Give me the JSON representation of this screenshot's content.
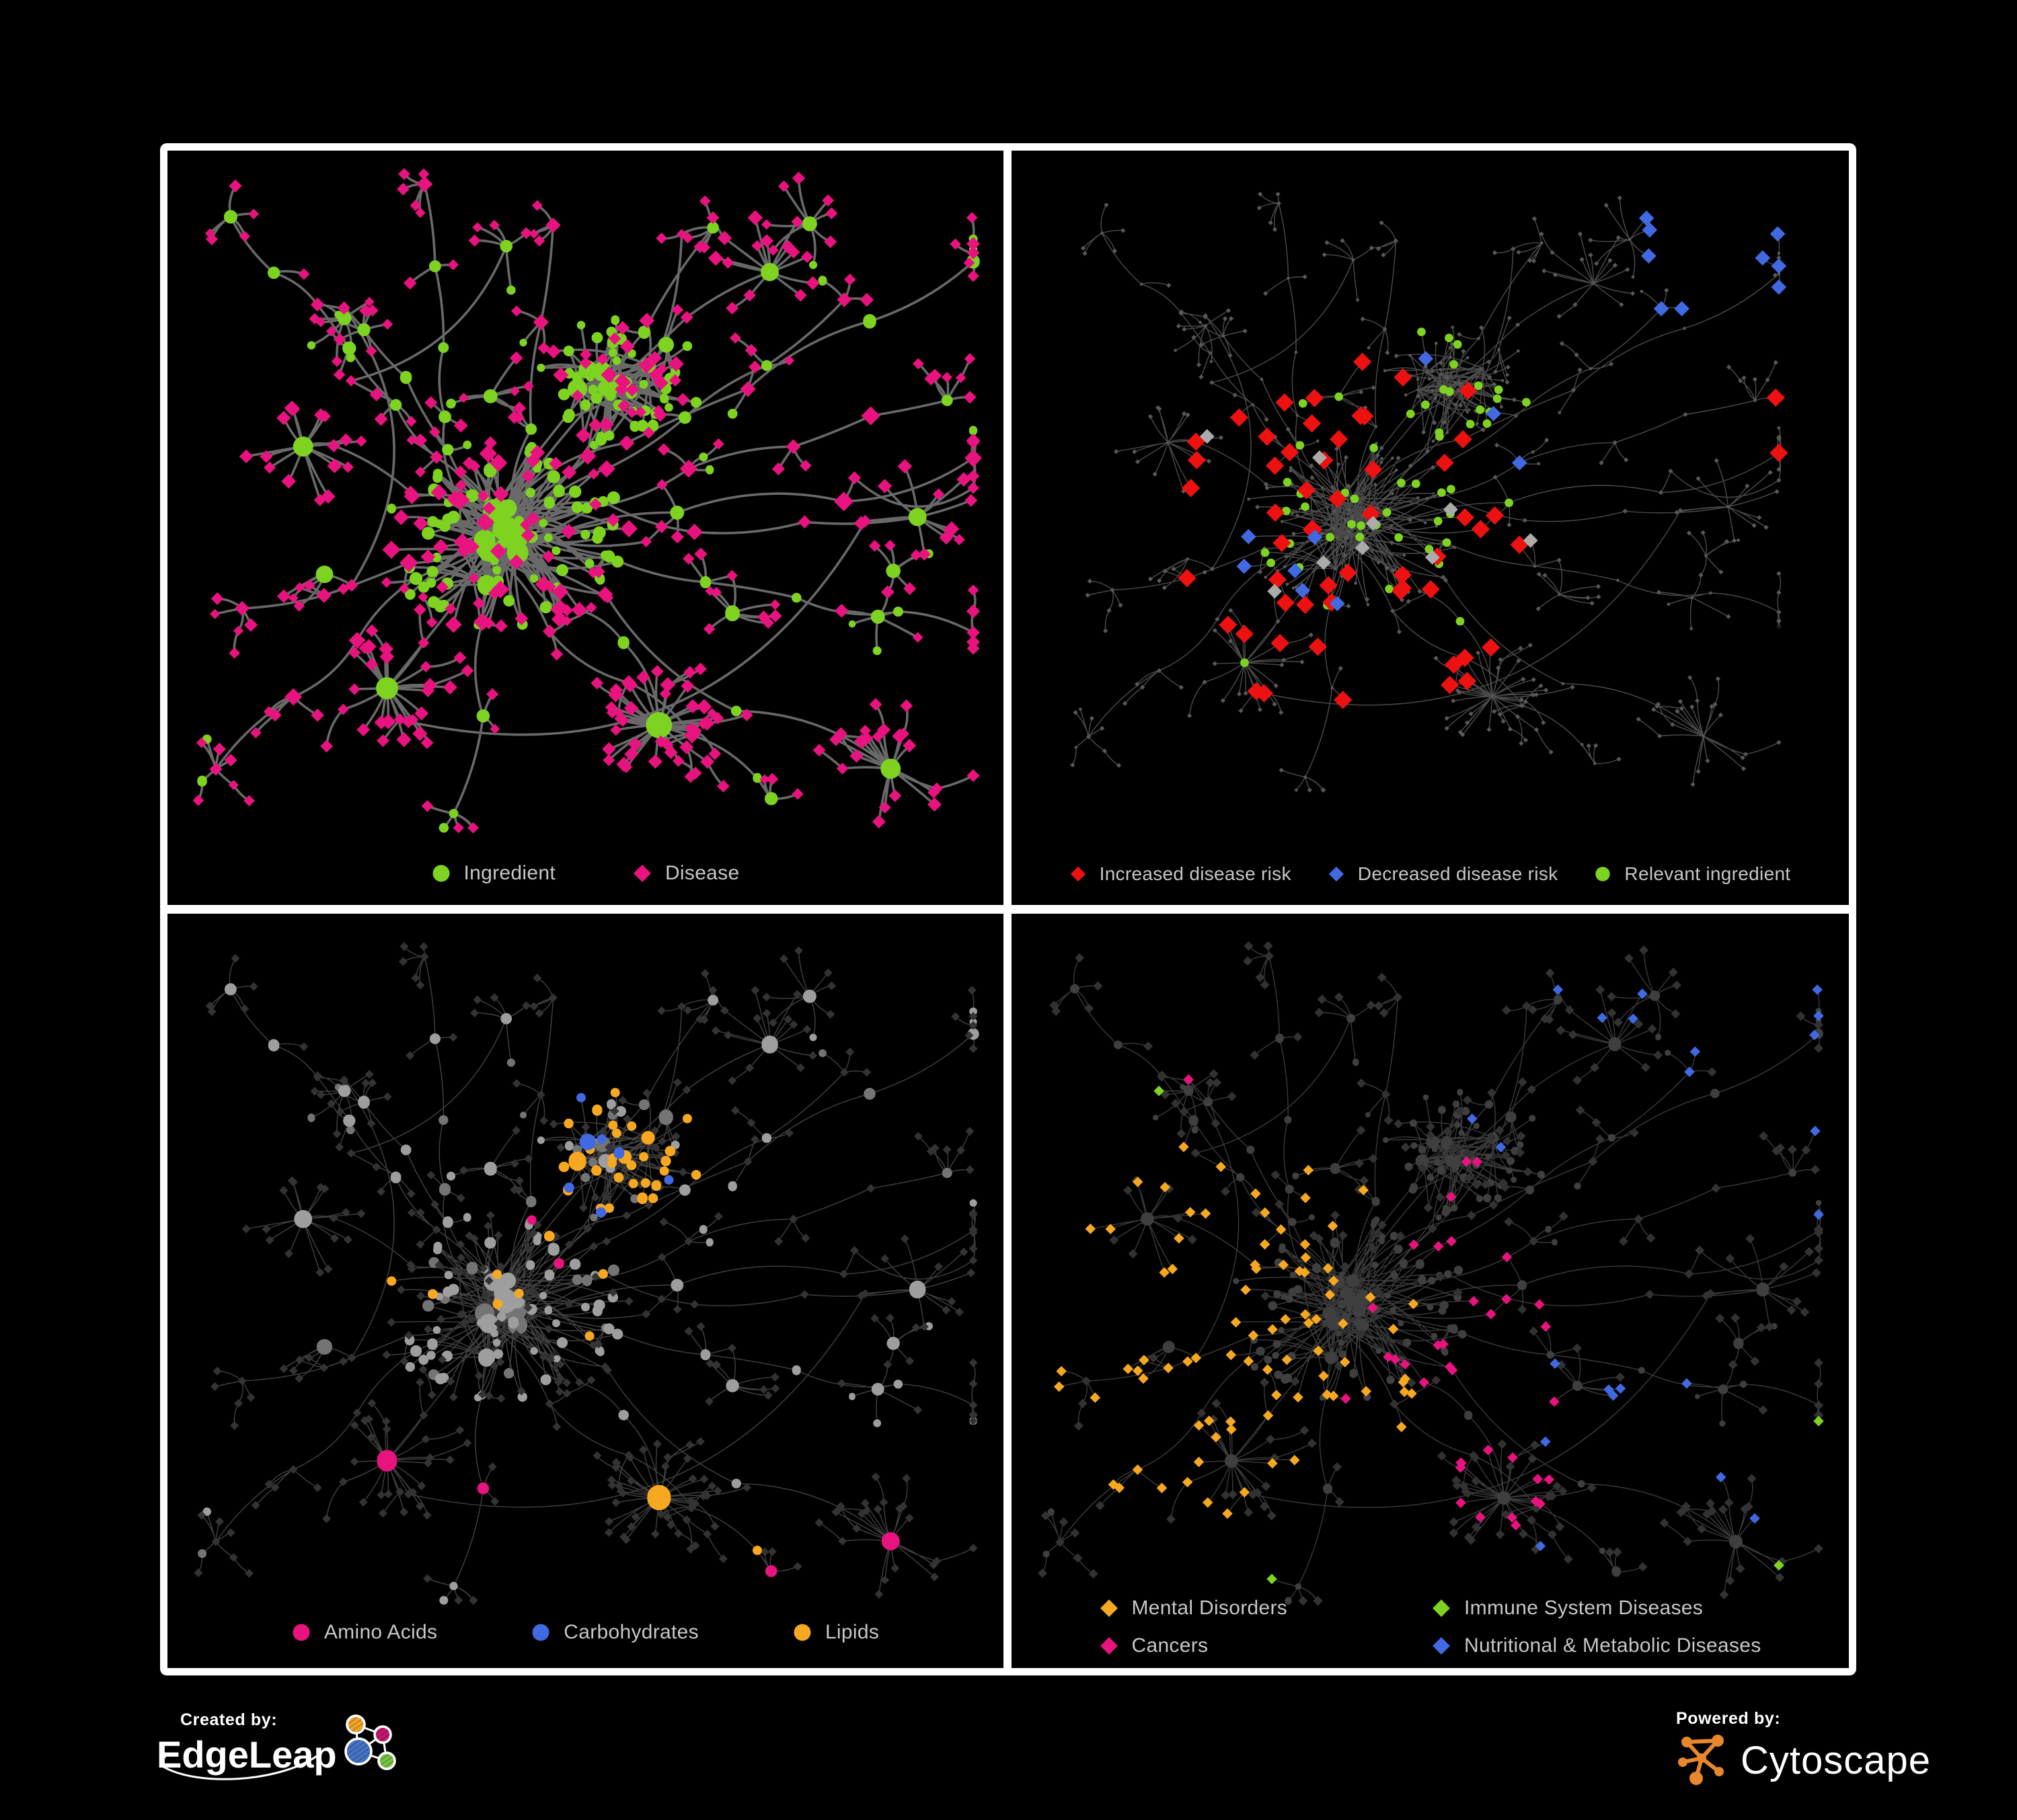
{
  "page": {
    "background": "#000000",
    "frame_color": "#FFFFFF",
    "legend_text_color": "#C7C7C7"
  },
  "network": {
    "type": "force-directed-network",
    "shared_layout": true,
    "node_shapes": {
      "circle": "ingredient",
      "diamond": "disease"
    }
  },
  "panels": [
    {
      "name": "ingredient-disease",
      "legend": [
        {
          "label": "Ingredient",
          "shape": "circle",
          "color": "#7ED321"
        },
        {
          "label": "Disease",
          "shape": "diamond",
          "color": "#E9137F"
        }
      ],
      "palette": {
        "edge": "#6F6F6F",
        "ingredient": "#7ED321",
        "disease": "#E9137F"
      }
    },
    {
      "name": "disease-risk",
      "legend": [
        {
          "label": "Increased disease risk",
          "shape": "diamond",
          "color": "#ED1111"
        },
        {
          "label": "Decreased disease risk",
          "shape": "diamond",
          "color": "#4169E1"
        },
        {
          "label": "Relevant ingredient",
          "shape": "circle",
          "color": "#7ED321"
        }
      ],
      "palette": {
        "edge": "#575757",
        "node": "#585858",
        "increased": "#ED1111",
        "decreased": "#4169E1",
        "other": "#ABABAB",
        "relevant": "#7ED321"
      }
    },
    {
      "name": "nutrient-classes",
      "legend": [
        {
          "label": "Amino Acids",
          "shape": "circle",
          "color": "#E9137F"
        },
        {
          "label": "Carbohydrates",
          "shape": "circle",
          "color": "#4169E1"
        },
        {
          "label": "Lipids",
          "shape": "circle",
          "color": "#F6A821"
        }
      ],
      "palette": {
        "edge": "#8F8F8F",
        "ingredient": "#9E9E9E",
        "ingredient_alt": "#747474",
        "disease": "#333333",
        "amino": "#E9137F",
        "carb": "#4169E1",
        "lipid": "#F6A821"
      }
    },
    {
      "name": "disease-categories",
      "legend": [
        {
          "label": "Mental Disorders",
          "shape": "diamond",
          "color": "#F6A821"
        },
        {
          "label": "Immune System Diseases",
          "shape": "diamond",
          "color": "#7ED321"
        },
        {
          "label": "Cancers",
          "shape": "diamond",
          "color": "#E9137F"
        },
        {
          "label": "Nutritional & Metabolic Diseases",
          "shape": "diamond",
          "color": "#4169E1"
        }
      ],
      "palette": {
        "edge": "#8F8F8F",
        "ingredient": "#3F3F3F",
        "disease": "#323232",
        "mental": "#F6A821",
        "immune": "#7ED321",
        "cancer": "#E9137F",
        "metabolic": "#4169E1"
      }
    }
  ],
  "footer": {
    "created_by": {
      "label": "Created by:",
      "brand": "EdgeLeap",
      "icon_colors": {
        "orange": "#F0A32A",
        "magenta": "#C2186B",
        "blue": "#4573C4",
        "green": "#76C043"
      }
    },
    "powered_by": {
      "label": "Powered by:",
      "brand": "Cytoscape",
      "brand_color": "#E8872B"
    }
  }
}
